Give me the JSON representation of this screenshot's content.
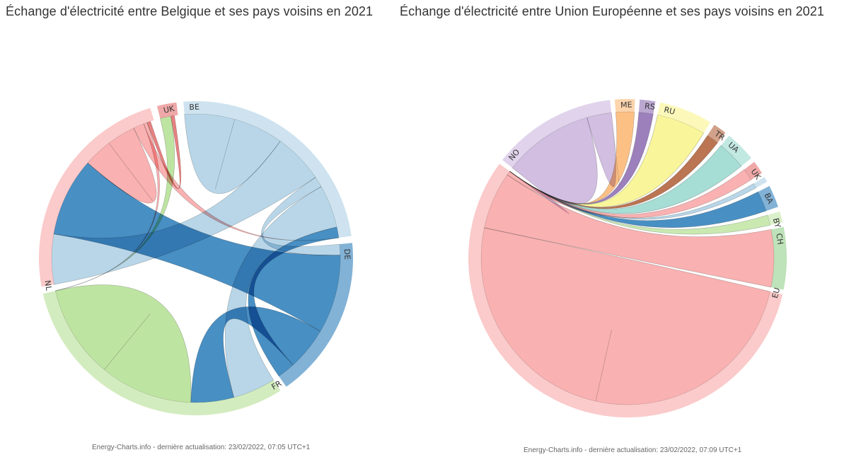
{
  "colors": {
    "BE": "#aed0e5",
    "NL": "#f8a6a6",
    "UK": "#e46e6e",
    "FR": "#b5e095",
    "DE": "#2f7fbb",
    "EU": "#f8a6a6",
    "CH": "#92cf8a",
    "BY": "#c2e6a6",
    "BA": "#2f7fbb",
    "UA": "#9ad8cf",
    "TR": "#b2623a",
    "RU": "#f8f48c",
    "RS": "#8e6eb3",
    "NO": "#cbb5dd",
    "ME": "#fcb774"
  },
  "charts": [
    {
      "title": "Échange d'électricité entre Belgique et ses pays voisins en 2021",
      "credit": "Energy-Charts.info - dernière actualisation: 23/02/2022, 07:05 UTC+1",
      "chart_data": {
        "type": "chord",
        "unit_note": "flow shares estimated from arc widths",
        "segments": [
          {
            "label": "BE",
            "key": "BE",
            "value": 30
          },
          {
            "label": "DE",
            "key": "DE",
            "value": 21
          },
          {
            "label": "FR",
            "key": "FR",
            "value": 38
          },
          {
            "label": "NL",
            "key": "NL",
            "value": 29
          },
          {
            "label": "UK",
            "key": "UK",
            "value": 2.5
          }
        ],
        "flows": [
          {
            "from": "BE",
            "to": "BE",
            "value": 7
          },
          {
            "from": "BE",
            "to": "NL",
            "value": 7
          },
          {
            "from": "BE",
            "to": "DE",
            "value": 1.5
          },
          {
            "from": "BE",
            "to": "FR",
            "value": 6
          },
          {
            "from": "DE",
            "to": "NL",
            "value": 11
          },
          {
            "from": "DE",
            "to": "FR",
            "value": 6
          },
          {
            "from": "DE",
            "to": "BE",
            "value": 2.5
          },
          {
            "from": "FR",
            "to": "FR",
            "value": 13
          },
          {
            "from": "FR",
            "to": "UK",
            "value": 1.5
          },
          {
            "from": "NL",
            "to": "NL",
            "value": 4
          },
          {
            "from": "NL",
            "to": "BE",
            "value": 1.5
          },
          {
            "from": "NL",
            "to": "FR",
            "value": 0.5
          },
          {
            "from": "UK",
            "to": "NL",
            "value": 0.5
          }
        ]
      }
    },
    {
      "title": "Échange d'électricité entre Union Européenne et ses pays voisins en 2021",
      "credit": "Energy-Charts.info - dernière actualisation: 23/02/2022, 07:09 UTC+1",
      "chart_data": {
        "type": "chord",
        "unit_note": "flow shares estimated from arc widths",
        "segments": [
          {
            "label": "EU",
            "key": "EU",
            "value": 125
          },
          {
            "label": "NO",
            "key": "NO",
            "value": 28
          },
          {
            "label": "ME",
            "key": "ME",
            "value": 4.5
          },
          {
            "label": "RS",
            "key": "RS",
            "value": 3.5
          },
          {
            "label": "RU",
            "key": "RU",
            "value": 12
          },
          {
            "label": "TR",
            "key": "TR",
            "value": 3
          },
          {
            "label": "UA",
            "key": "UA",
            "value": 7
          },
          {
            "label": "UK",
            "key": "UK",
            "value": 3
          },
          {
            "label": "",
            "key": "BE",
            "value": 1.2
          },
          {
            "label": "BA",
            "key": "BA",
            "value": 5
          },
          {
            "label": "BY",
            "key": "BY",
            "value": 2.5
          },
          {
            "label": "CH",
            "key": "CH",
            "value": 14
          }
        ],
        "flows": [
          {
            "from": "EU",
            "to": "EU",
            "value": 55
          },
          {
            "from": "EU",
            "to": "CH",
            "value": 14
          },
          {
            "from": "EU",
            "to": "UK",
            "value": 3
          },
          {
            "from": "NO",
            "to": "EU",
            "value": 22
          },
          {
            "from": "NO",
            "to": "NO",
            "value": 6
          },
          {
            "from": "RU",
            "to": "EU",
            "value": 12
          },
          {
            "from": "UA",
            "to": "EU",
            "value": 7
          },
          {
            "from": "BA",
            "to": "EU",
            "value": 5
          },
          {
            "from": "BY",
            "to": "EU",
            "value": 2.5
          },
          {
            "from": "TR",
            "to": "EU",
            "value": 3
          },
          {
            "from": "ME",
            "to": "EU",
            "value": 4.5
          },
          {
            "from": "RS",
            "to": "EU",
            "value": 3.5
          },
          {
            "from": "BE",
            "to": "EU",
            "value": 1.2
          }
        ]
      }
    }
  ]
}
